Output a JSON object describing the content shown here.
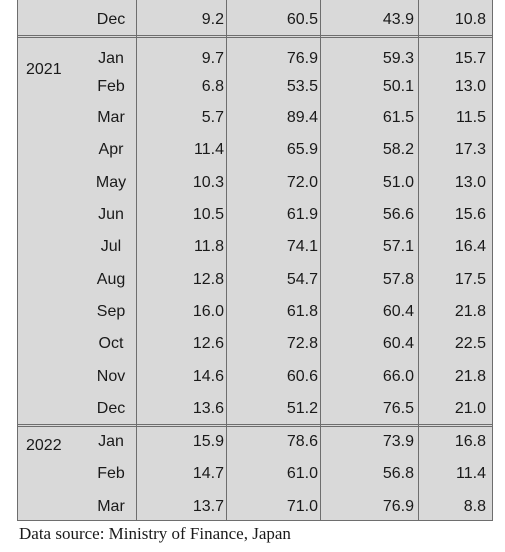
{
  "table": {
    "rows": [
      {
        "year": "",
        "month": "Dec",
        "v1": "9.2",
        "v2": "60.5",
        "v3": "43.9",
        "v4": "10.8"
      },
      {
        "year": "2021",
        "month": "Jan",
        "v1": "9.7",
        "v2": "76.9",
        "v3": "59.3",
        "v4": "15.7"
      },
      {
        "year": "",
        "month": "Feb",
        "v1": "6.8",
        "v2": "53.5",
        "v3": "50.1",
        "v4": "13.0"
      },
      {
        "year": "",
        "month": "Mar",
        "v1": "5.7",
        "v2": "89.4",
        "v3": "61.5",
        "v4": "11.5"
      },
      {
        "year": "",
        "month": "Apr",
        "v1": "11.4",
        "v2": "65.9",
        "v3": "58.2",
        "v4": "17.3"
      },
      {
        "year": "",
        "month": "May",
        "v1": "10.3",
        "v2": "72.0",
        "v3": "51.0",
        "v4": "13.0"
      },
      {
        "year": "",
        "month": "Jun",
        "v1": "10.5",
        "v2": "61.9",
        "v3": "56.6",
        "v4": "15.6"
      },
      {
        "year": "",
        "month": "Jul",
        "v1": "11.8",
        "v2": "74.1",
        "v3": "57.1",
        "v4": "16.4"
      },
      {
        "year": "",
        "month": "Aug",
        "v1": "12.8",
        "v2": "54.7",
        "v3": "57.8",
        "v4": "17.5"
      },
      {
        "year": "",
        "month": "Sep",
        "v1": "16.0",
        "v2": "61.8",
        "v3": "60.4",
        "v4": "21.8"
      },
      {
        "year": "",
        "month": "Oct",
        "v1": "12.6",
        "v2": "72.8",
        "v3": "60.4",
        "v4": "22.5"
      },
      {
        "year": "",
        "month": "Nov",
        "v1": "14.6",
        "v2": "60.6",
        "v3": "66.0",
        "v4": "21.8"
      },
      {
        "year": "",
        "month": "Dec",
        "v1": "13.6",
        "v2": "51.2",
        "v3": "76.5",
        "v4": "21.0"
      },
      {
        "year": "2022",
        "month": "Jan",
        "v1": "15.9",
        "v2": "78.6",
        "v3": "73.9",
        "v4": "16.8"
      },
      {
        "year": "",
        "month": "Feb",
        "v1": "14.7",
        "v2": "61.0",
        "v3": "56.8",
        "v4": "11.4"
      },
      {
        "year": "",
        "month": "Mar",
        "v1": "13.7",
        "v2": "71.0",
        "v3": "76.9",
        "v4": "8.8"
      }
    ]
  },
  "source_note": "Data source: Ministry of Finance, Japan"
}
